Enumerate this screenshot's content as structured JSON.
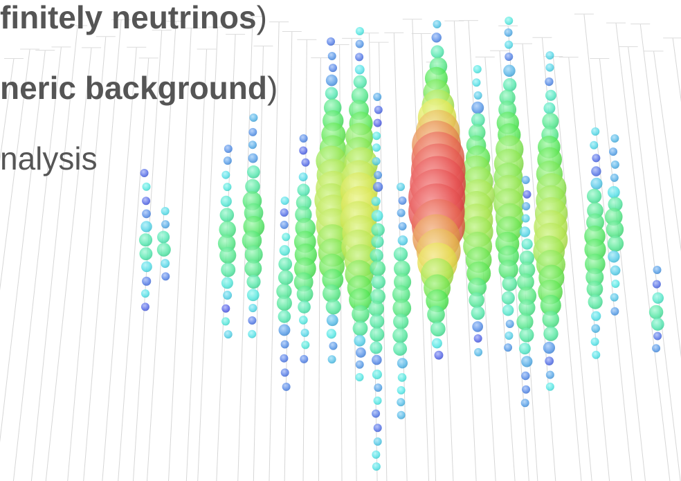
{
  "slide": {
    "lines": [
      {
        "bold": "finitely neutrinos",
        "plain": ")"
      },
      {
        "bold": "neric background",
        "plain": ")"
      },
      {
        "plain": "nalysis"
      }
    ]
  }
}
